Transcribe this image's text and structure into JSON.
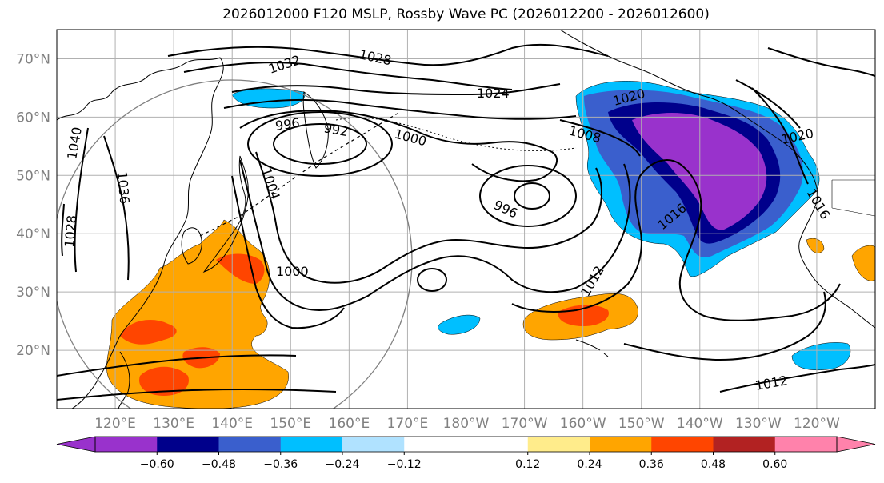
{
  "title": "2026012000 F120 MSLP, Rossby Wave PC (2026012200 - 2026012600)",
  "map": {
    "lat_ticks": [
      "70°N",
      "60°N",
      "50°N",
      "40°N",
      "30°N",
      "20°N"
    ],
    "lon_ticks": [
      "120°E",
      "130°E",
      "140°E",
      "150°E",
      "160°E",
      "170°E",
      "180°W",
      "170°W",
      "160°W",
      "150°W",
      "140°W",
      "130°W",
      "120°W"
    ],
    "lat_range": [
      10,
      75
    ],
    "lon_range_east": [
      110,
      250
    ],
    "grid": true,
    "colors": {
      "contour": "#000000",
      "coast": "#000000",
      "grid": "#b0b0b0",
      "circle": "#808080"
    }
  },
  "isobars": {
    "labels": [
      "1032",
      "1028",
      "1024",
      "1020",
      "1008",
      "996",
      "992",
      "1000",
      "1040",
      "1036",
      "1028",
      "1004",
      "996",
      "1000",
      "1016",
      "1020",
      "1016",
      "1012",
      "1012"
    ]
  },
  "colorbar": {
    "tick_labels": [
      "−0.60",
      "−0.48",
      "−0.36",
      "−0.24",
      "−0.12",
      "0.12",
      "0.24",
      "0.36",
      "0.48",
      "0.60"
    ],
    "ticks": [
      -0.6,
      -0.48,
      -0.36,
      -0.24,
      -0.12,
      0.12,
      0.24,
      0.36,
      0.48,
      0.6
    ],
    "extend": "both",
    "colors": [
      "#9932cc",
      "#00008b",
      "#3a5fcd",
      "#00bfff",
      "#b0e2ff",
      "#ffffff",
      "#ffec8b",
      "#ffa500",
      "#ff4500",
      "#b22222",
      "#ff82ab"
    ]
  }
}
